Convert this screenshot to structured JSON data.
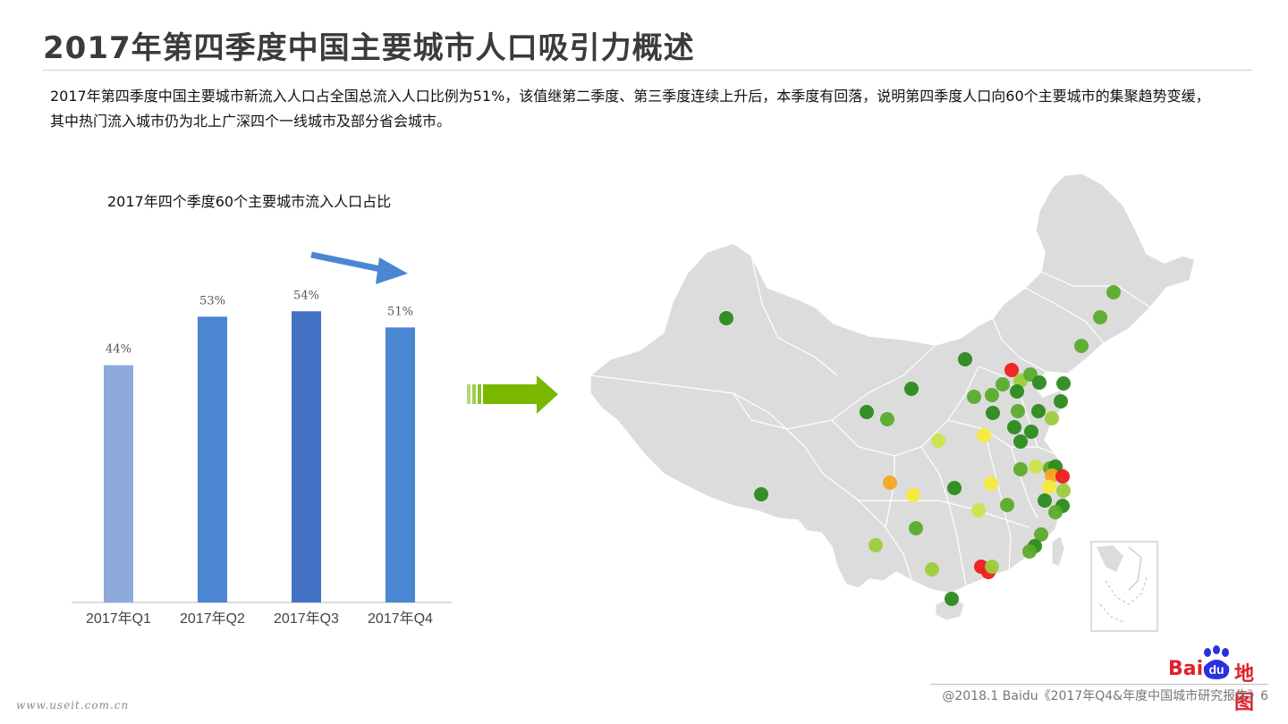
{
  "page": {
    "title": "2017年第四季度中国主要城市人口吸引力概述",
    "summary": "2017年第四季度中国主要城市新流入人口占全国总流入人口比例为51%，该值继第二季度、第三季度连续上升后，本季度有回落，说明第四季度人口向60个主要城市的集聚趋势变缓，其中热门流入城市仍为北上广深四个一线城市及部分省会城市。",
    "watermark": "www.useit.com.cn",
    "footer": "@2018.1 Baidu《2017年Q4&年度中国城市研究报告》6"
  },
  "logo": {
    "text_left": "Bai",
    "text_paw": "du",
    "text_right": "地图",
    "color": "#e0202a"
  },
  "chart_data": {
    "type": "bar",
    "title": "2017年四个季度60个主要城市流入人口占比",
    "categories": [
      "2017年Q1",
      "2017年Q2",
      "2017年Q3",
      "2017年Q4"
    ],
    "values": [
      44,
      53,
      54,
      51
    ],
    "value_labels": [
      "44%",
      "53%",
      "54%",
      "51%"
    ],
    "ylim": [
      0,
      62
    ],
    "colors": [
      "#8eaadb",
      "#4a86d1",
      "#4472c4",
      "#4a86d1"
    ],
    "trend_arrow_color": "#4a86d1",
    "grid": false,
    "legend": "none"
  },
  "map": {
    "land_color": "#dcdcdc",
    "border_color": "#ffffff",
    "arrow_color": "#7ab800",
    "marker_colors": {
      "dark_green": "#2b8a1c",
      "green": "#5aab2a",
      "light_green": "#9ccc3a",
      "yellow_green": "#cde34a",
      "yellow": "#f5ea3a",
      "orange": "#f6a623",
      "red": "#ee1c1c"
    }
  }
}
